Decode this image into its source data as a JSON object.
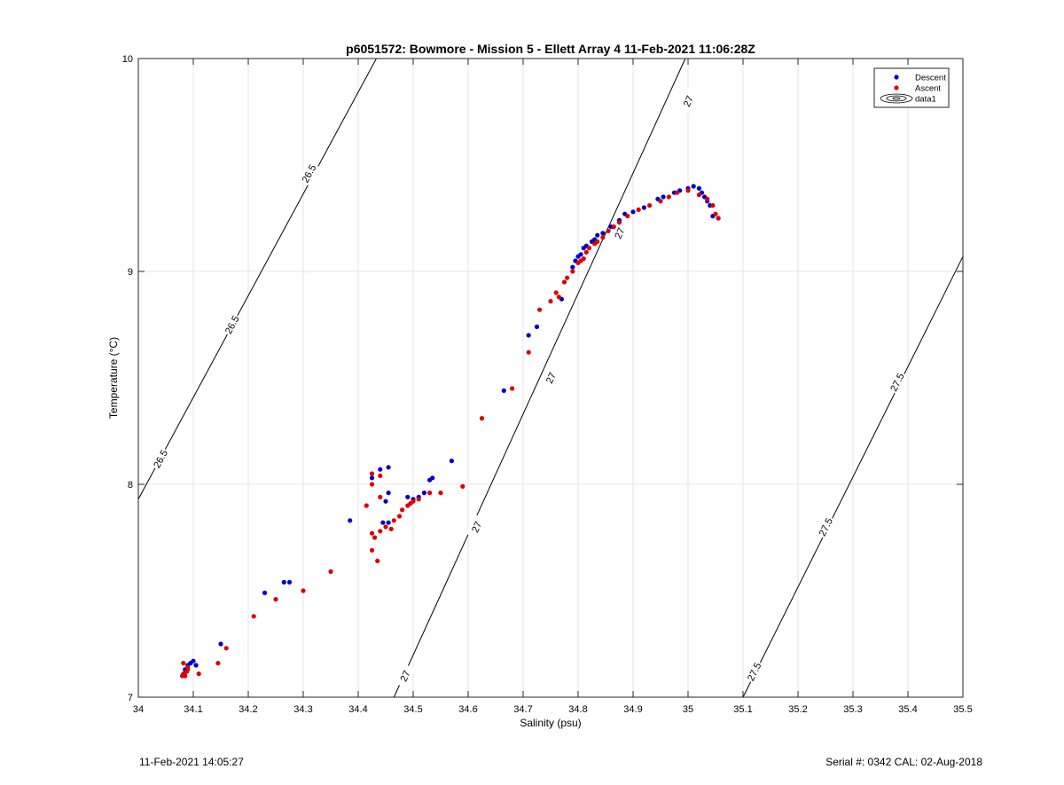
{
  "chart_data": {
    "type": "scatter",
    "title": "p6051572: Bowmore - Mission 5 - Ellett Array 4 11-Feb-2021 11:06:28Z",
    "xlabel": "Salinity (psu)",
    "ylabel": "Temperature (°C)",
    "xlim": [
      34,
      35.5
    ],
    "ylim": [
      7,
      10
    ],
    "xticks": [
      "34",
      "34.1",
      "34.2",
      "34.3",
      "34.4",
      "34.5",
      "34.6",
      "34.7",
      "34.8",
      "34.9",
      "35",
      "35.1",
      "35.2",
      "35.3",
      "35.4",
      "35.5"
    ],
    "yticks": [
      "7",
      "8",
      "9",
      "10"
    ],
    "grid": true,
    "legend_position": "top-right",
    "series": [
      {
        "name": "Descent",
        "color": "#0000cc",
        "points": [
          [
            34.085,
            7.13
          ],
          [
            34.09,
            7.15
          ],
          [
            34.095,
            7.16
          ],
          [
            34.1,
            7.17
          ],
          [
            34.105,
            7.15
          ],
          [
            34.15,
            7.25
          ],
          [
            34.23,
            7.49
          ],
          [
            34.265,
            7.54
          ],
          [
            34.275,
            7.54
          ],
          [
            34.385,
            7.83
          ],
          [
            34.425,
            8.03
          ],
          [
            34.44,
            8.07
          ],
          [
            34.455,
            8.08
          ],
          [
            34.45,
            7.92
          ],
          [
            34.455,
            7.96
          ],
          [
            34.445,
            7.82
          ],
          [
            34.455,
            7.82
          ],
          [
            34.49,
            7.94
          ],
          [
            34.5,
            7.93
          ],
          [
            34.51,
            7.94
          ],
          [
            34.52,
            7.96
          ],
          [
            34.53,
            8.02
          ],
          [
            34.535,
            8.03
          ],
          [
            34.57,
            8.11
          ],
          [
            34.665,
            8.44
          ],
          [
            34.71,
            8.7
          ],
          [
            34.725,
            8.74
          ],
          [
            34.77,
            8.87
          ],
          [
            34.79,
            9.02
          ],
          [
            34.795,
            9.05
          ],
          [
            34.8,
            9.07
          ],
          [
            34.805,
            9.08
          ],
          [
            34.81,
            9.11
          ],
          [
            34.815,
            9.12
          ],
          [
            34.825,
            9.14
          ],
          [
            34.83,
            9.15
          ],
          [
            34.835,
            9.17
          ],
          [
            34.845,
            9.18
          ],
          [
            34.86,
            9.21
          ],
          [
            34.875,
            9.24
          ],
          [
            34.885,
            9.27
          ],
          [
            34.9,
            9.28
          ],
          [
            34.92,
            9.3
          ],
          [
            34.945,
            9.34
          ],
          [
            34.955,
            9.35
          ],
          [
            34.975,
            9.37
          ],
          [
            34.985,
            9.38
          ],
          [
            35.0,
            9.39
          ],
          [
            35.01,
            9.4
          ],
          [
            35.02,
            9.39
          ],
          [
            35.025,
            9.37
          ],
          [
            35.03,
            9.35
          ],
          [
            35.035,
            9.33
          ],
          [
            35.04,
            9.31
          ],
          [
            35.045,
            9.26
          ],
          [
            35.055,
            9.25
          ]
        ]
      },
      {
        "name": "Ascent",
        "color": "#dd0000",
        "points": [
          [
            34.08,
            7.1
          ],
          [
            34.082,
            7.11
          ],
          [
            34.085,
            7.1
          ],
          [
            34.088,
            7.12
          ],
          [
            34.09,
            7.13
          ],
          [
            34.082,
            7.16
          ],
          [
            34.09,
            7.14
          ],
          [
            34.11,
            7.11
          ],
          [
            34.145,
            7.16
          ],
          [
            34.16,
            7.23
          ],
          [
            34.21,
            7.38
          ],
          [
            34.25,
            7.46
          ],
          [
            34.3,
            7.5
          ],
          [
            34.35,
            7.59
          ],
          [
            34.415,
            7.9
          ],
          [
            34.425,
            8.0
          ],
          [
            34.425,
            8.05
          ],
          [
            34.44,
            8.04
          ],
          [
            34.44,
            7.94
          ],
          [
            34.425,
            7.77
          ],
          [
            34.43,
            7.75
          ],
          [
            34.425,
            7.69
          ],
          [
            34.435,
            7.64
          ],
          [
            34.44,
            7.78
          ],
          [
            34.45,
            7.8
          ],
          [
            34.46,
            7.79
          ],
          [
            34.465,
            7.83
          ],
          [
            34.475,
            7.85
          ],
          [
            34.48,
            7.88
          ],
          [
            34.49,
            7.9
          ],
          [
            34.495,
            7.91
          ],
          [
            34.5,
            7.92
          ],
          [
            34.51,
            7.93
          ],
          [
            34.53,
            7.96
          ],
          [
            34.55,
            7.96
          ],
          [
            34.59,
            7.99
          ],
          [
            34.625,
            8.31
          ],
          [
            34.68,
            8.45
          ],
          [
            34.71,
            8.62
          ],
          [
            34.73,
            8.82
          ],
          [
            34.75,
            8.86
          ],
          [
            34.76,
            8.9
          ],
          [
            34.765,
            8.88
          ],
          [
            34.775,
            8.95
          ],
          [
            34.78,
            8.97
          ],
          [
            34.79,
            9.0
          ],
          [
            34.8,
            9.04
          ],
          [
            34.805,
            9.05
          ],
          [
            34.81,
            9.06
          ],
          [
            34.815,
            9.09
          ],
          [
            34.82,
            9.11
          ],
          [
            34.83,
            9.13
          ],
          [
            34.835,
            9.14
          ],
          [
            34.845,
            9.16
          ],
          [
            34.855,
            9.19
          ],
          [
            34.865,
            9.21
          ],
          [
            34.875,
            9.23
          ],
          [
            34.89,
            9.26
          ],
          [
            34.91,
            9.29
          ],
          [
            34.93,
            9.31
          ],
          [
            34.95,
            9.33
          ],
          [
            34.965,
            9.35
          ],
          [
            34.98,
            9.37
          ],
          [
            35.0,
            9.38
          ],
          [
            35.02,
            9.36
          ],
          [
            35.035,
            9.34
          ],
          [
            35.045,
            9.31
          ],
          [
            35.05,
            9.27
          ],
          [
            35.055,
            9.25
          ]
        ]
      },
      {
        "name": "data1",
        "type": "contour",
        "color": "#000000",
        "lines": [
          {
            "level_label": "26.5",
            "from": [
              34.0,
              7.93
            ],
            "to": [
              34.433,
              10.0
            ],
            "label_positions": [
              [
                34.04,
                8.12
              ],
              [
                34.17,
                8.75
              ],
              [
                34.31,
                9.46
              ]
            ]
          },
          {
            "level_label": "27",
            "from": [
              34.465,
              7.0
            ],
            "to": [
              34.995,
              10.0
            ],
            "label_positions": [
              [
                34.485,
                7.1
              ],
              [
                34.615,
                7.8
              ],
              [
                34.75,
                8.5
              ],
              [
                34.875,
                9.18
              ],
              [
                35.0,
                9.8
              ]
            ]
          },
          {
            "level_label": "27.5",
            "from": [
              35.1,
              7.0
            ],
            "to": [
              35.5,
              9.07
            ],
            "label_positions": [
              [
                35.12,
                7.12
              ],
              [
                35.25,
                7.8
              ],
              [
                35.38,
                8.48
              ]
            ]
          }
        ]
      }
    ]
  },
  "footer": {
    "left": "11-Feb-2021 14:05:27",
    "right": "Serial #: 0342  CAL: 02-Aug-2018"
  }
}
